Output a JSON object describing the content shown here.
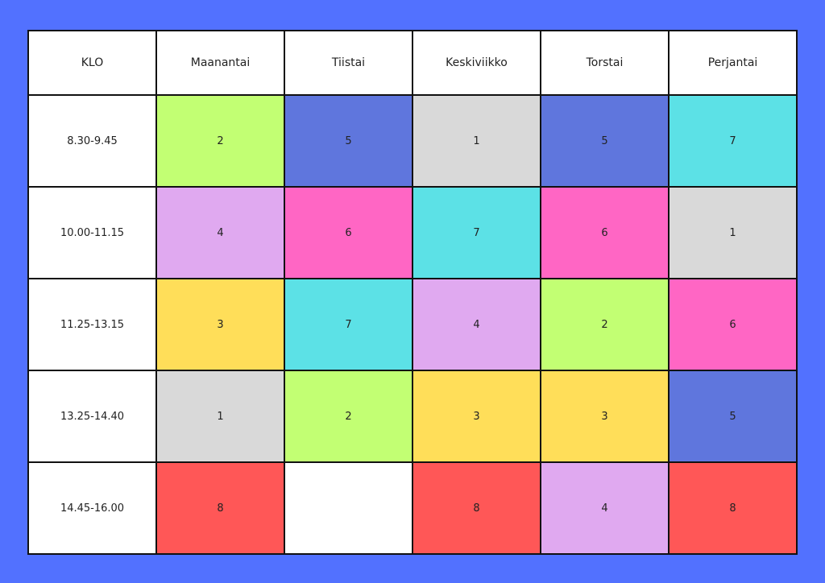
{
  "header": [
    "KLO",
    "Maanantai",
    "Tiistai",
    "Keskiviikko",
    "Torstai",
    "Perjantai"
  ],
  "rows": [
    {
      "time": "8.30-9.45",
      "cells": [
        {
          "value": "2",
          "color": "#c2ff73"
        },
        {
          "value": "5",
          "color": "#5f76dd"
        },
        {
          "value": "1",
          "color": "#d9d9d9"
        },
        {
          "value": "5",
          "color": "#5f76dd"
        },
        {
          "value": "7",
          "color": "#5ce1e6"
        }
      ]
    },
    {
      "time": "10.00-11.15",
      "cells": [
        {
          "value": "4",
          "color": "#e0a9f0"
        },
        {
          "value": "6",
          "color": "#ff66c4"
        },
        {
          "value": "7",
          "color": "#5ce1e6"
        },
        {
          "value": "6",
          "color": "#ff66c4"
        },
        {
          "value": "1",
          "color": "#d9d9d9"
        }
      ]
    },
    {
      "time": "11.25-13.15",
      "cells": [
        {
          "value": "3",
          "color": "#ffde59"
        },
        {
          "value": "7",
          "color": "#5ce1e6"
        },
        {
          "value": "4",
          "color": "#e0a9f0"
        },
        {
          "value": "2",
          "color": "#c2ff73"
        },
        {
          "value": "6",
          "color": "#ff66c4"
        }
      ]
    },
    {
      "time": "13.25-14.40",
      "cells": [
        {
          "value": "1",
          "color": "#d9d9d9"
        },
        {
          "value": "2",
          "color": "#c2ff73"
        },
        {
          "value": "3",
          "color": "#ffde59"
        },
        {
          "value": "3",
          "color": "#ffde59"
        },
        {
          "value": "5",
          "color": "#5f76dd"
        }
      ]
    },
    {
      "time": "14.45-16.00",
      "cells": [
        {
          "value": "8",
          "color": "#ff5757"
        },
        {
          "value": "",
          "color": "#ffffff"
        },
        {
          "value": "8",
          "color": "#ff5757"
        },
        {
          "value": "4",
          "color": "#e0a9f0"
        },
        {
          "value": "8",
          "color": "#ff5757"
        }
      ]
    }
  ]
}
